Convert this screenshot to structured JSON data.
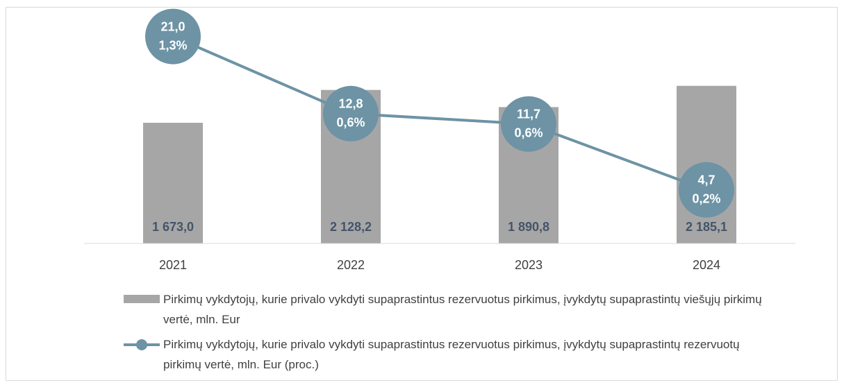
{
  "chart_data": {
    "type": "bar",
    "categories": [
      "2021",
      "2022",
      "2023",
      "2024"
    ],
    "ylim": [
      0,
      3000
    ],
    "y2lim": [
      -1,
      22
    ],
    "series": [
      {
        "type": "bar",
        "name": "Pirkimų vykdytojų, kurie privalo vykdyti supaprastintus rezervuotus pirkimus, įvykdytų supaprastintų viešųjų pirkimų vertė, mln. Eur",
        "color": "#a6a6a6",
        "values": [
          1673.0,
          2128.2,
          1890.8,
          2185.1
        ],
        "value_labels": [
          "1 673,0",
          "2 128,2",
          "1 890,8",
          "2 185,1"
        ]
      },
      {
        "type": "line",
        "axis": "y2",
        "name": "Pirkimų vykdytojų, kurie privalo vykdyti supaprastintus rezervuotus pirkimus, įvykdytų supaprastintų rezervuotų pirkimų vertė, mln. Eur (proc.)",
        "color": "#6d93a5",
        "values": [
          21.0,
          12.8,
          11.7,
          4.7
        ],
        "value_labels": [
          "21,0",
          "12,8",
          "11,7",
          "4,7"
        ],
        "share_values": [
          1.3,
          0.6,
          0.6,
          0.2
        ],
        "share_labels": [
          "1,3%",
          "0,6%",
          "0,6%",
          "0,2%"
        ]
      }
    ]
  }
}
